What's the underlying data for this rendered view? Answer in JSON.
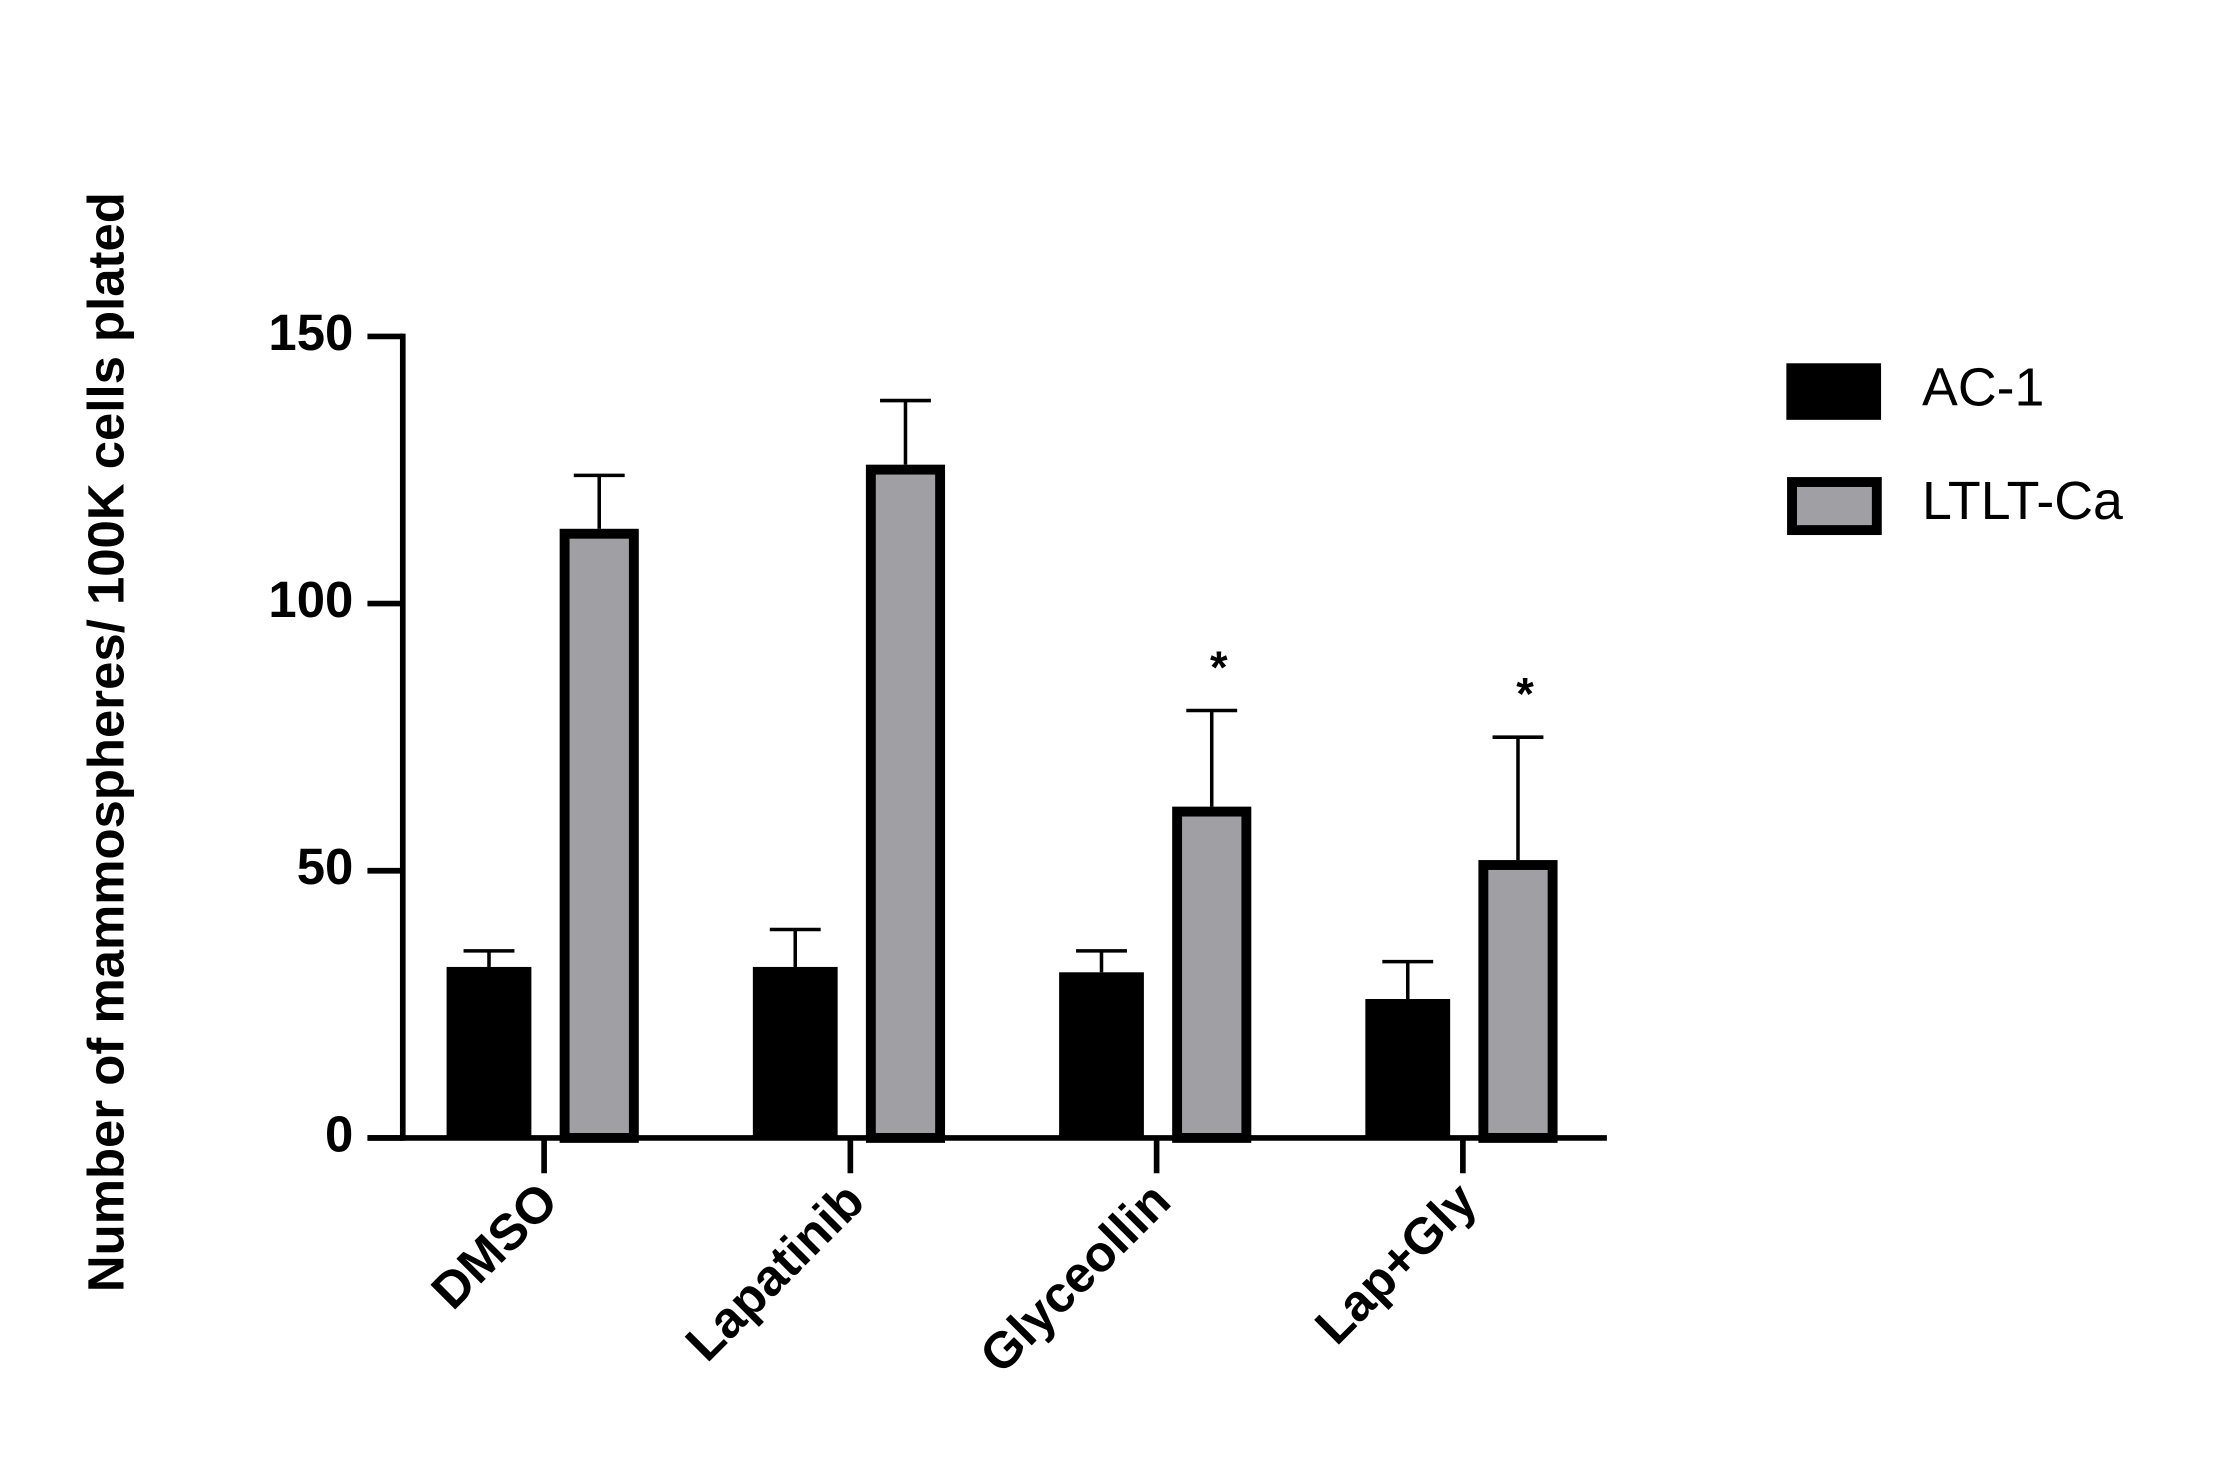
{
  "chart_data": {
    "type": "bar",
    "y_label": "Number of mammospheres/ 100K cells plated",
    "categories": [
      "DMSO",
      "Lapatinib",
      "Glyceollin",
      "Lap+Gly"
    ],
    "series": [
      {
        "name": "AC-1",
        "color": "#000000",
        "values": [
          32,
          32,
          31,
          26
        ],
        "errors": [
          3,
          7,
          4,
          7
        ]
      },
      {
        "name": "LTLT-Ca",
        "color": "#a0a0a4",
        "values": [
          114,
          126,
          62,
          52
        ],
        "errors": [
          10,
          12,
          18,
          23
        ]
      }
    ],
    "annotations": [
      {
        "text": "*",
        "category": "Glyceollin",
        "series": "LTLT-Ca"
      },
      {
        "text": "*",
        "category": "Lap+Gly",
        "series": "LTLT-Ca"
      }
    ],
    "ylim": [
      0,
      150
    ],
    "yticks": [
      0,
      50,
      100,
      150
    ],
    "grid": false,
    "legend": "right"
  }
}
